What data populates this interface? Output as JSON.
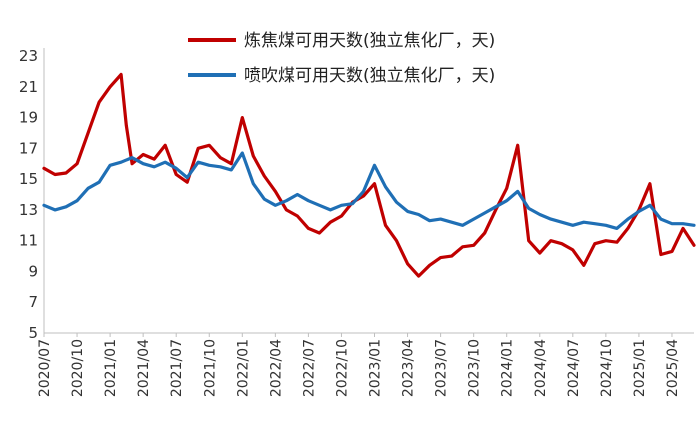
{
  "chart_data": {
    "type": "line",
    "title": "",
    "xlabel": "",
    "ylabel": "",
    "ylim": [
      5,
      23
    ],
    "yticks": [
      5,
      7,
      9,
      11,
      13,
      15,
      17,
      19,
      21,
      23
    ],
    "xticks": [
      "2020/07",
      "2020/10",
      "2021/01",
      "2021/04",
      "2021/07",
      "2021/10",
      "2022/01",
      "2022/04",
      "2022/07",
      "2022/10",
      "2023/01",
      "2023/04",
      "2023/07",
      "2023/10",
      "2024/01",
      "2024/04",
      "2024/07",
      "2024/10",
      "2025/01",
      "2025/04"
    ],
    "x_unit": "month",
    "legend_position": "top-center",
    "grid": false,
    "series": [
      {
        "name": "炼焦煤可用天数(独立焦化厂，天)",
        "color": "#c00000",
        "points": [
          [
            "2020-07",
            15.7
          ],
          [
            "2020-08",
            15.3
          ],
          [
            "2020-09",
            15.4
          ],
          [
            "2020-10",
            16.0
          ],
          [
            "2020-11",
            18.0
          ],
          [
            "2020-12",
            20.0
          ],
          [
            "2021-01",
            21.0
          ],
          [
            "2021-02",
            21.8
          ],
          [
            "2021-02-15",
            18.5
          ],
          [
            "2021-03",
            16.0
          ],
          [
            "2021-04",
            16.6
          ],
          [
            "2021-05",
            16.3
          ],
          [
            "2021-06",
            17.2
          ],
          [
            "2021-07",
            15.3
          ],
          [
            "2021-08",
            14.8
          ],
          [
            "2021-09",
            17.0
          ],
          [
            "2021-10",
            17.2
          ],
          [
            "2021-11",
            16.4
          ],
          [
            "2021-12",
            16.0
          ],
          [
            "2022-01",
            19.0
          ],
          [
            "2022-02",
            16.5
          ],
          [
            "2022-03",
            15.2
          ],
          [
            "2022-04",
            14.2
          ],
          [
            "2022-05",
            13.0
          ],
          [
            "2022-06",
            12.6
          ],
          [
            "2022-07",
            11.8
          ],
          [
            "2022-08",
            11.5
          ],
          [
            "2022-09",
            12.2
          ],
          [
            "2022-10",
            12.6
          ],
          [
            "2022-11",
            13.5
          ],
          [
            "2022-12",
            13.9
          ],
          [
            "2023-01",
            14.7
          ],
          [
            "2023-02",
            12.0
          ],
          [
            "2023-03",
            11.0
          ],
          [
            "2023-04",
            9.5
          ],
          [
            "2023-05",
            8.7
          ],
          [
            "2023-06",
            9.4
          ],
          [
            "2023-07",
            9.9
          ],
          [
            "2023-08",
            10.0
          ],
          [
            "2023-09",
            10.6
          ],
          [
            "2023-10",
            10.7
          ],
          [
            "2023-11",
            11.5
          ],
          [
            "2023-12",
            13.0
          ],
          [
            "2024-01",
            14.4
          ],
          [
            "2024-02",
            17.2
          ],
          [
            "2024-03",
            11.0
          ],
          [
            "2024-04",
            10.2
          ],
          [
            "2024-05",
            11.0
          ],
          [
            "2024-06",
            10.8
          ],
          [
            "2024-07",
            10.4
          ],
          [
            "2024-08",
            9.4
          ],
          [
            "2024-09",
            10.8
          ],
          [
            "2024-10",
            11.0
          ],
          [
            "2024-11",
            10.9
          ],
          [
            "2024-12",
            11.8
          ],
          [
            "2025-01",
            13.0
          ],
          [
            "2025-02",
            14.7
          ],
          [
            "2025-03",
            10.1
          ],
          [
            "2025-04",
            10.3
          ],
          [
            "2025-05",
            11.8
          ],
          [
            "2025-06",
            10.7
          ]
        ]
      },
      {
        "name": "喷吹煤可用天数(独立焦化厂，天)",
        "color": "#1f6fb5",
        "points": [
          [
            "2020-07",
            13.3
          ],
          [
            "2020-08",
            13.0
          ],
          [
            "2020-09",
            13.2
          ],
          [
            "2020-10",
            13.6
          ],
          [
            "2020-11",
            14.4
          ],
          [
            "2020-12",
            14.8
          ],
          [
            "2021-01",
            15.9
          ],
          [
            "2021-02",
            16.1
          ],
          [
            "2021-03",
            16.4
          ],
          [
            "2021-04",
            16.0
          ],
          [
            "2021-05",
            15.8
          ],
          [
            "2021-06",
            16.1
          ],
          [
            "2021-07",
            15.7
          ],
          [
            "2021-08",
            15.1
          ],
          [
            "2021-09",
            16.1
          ],
          [
            "2021-10",
            15.9
          ],
          [
            "2021-11",
            15.8
          ],
          [
            "2021-12",
            15.6
          ],
          [
            "2022-01",
            16.7
          ],
          [
            "2022-02",
            14.7
          ],
          [
            "2022-03",
            13.7
          ],
          [
            "2022-04",
            13.3
          ],
          [
            "2022-05",
            13.6
          ],
          [
            "2022-06",
            14.0
          ],
          [
            "2022-07",
            13.6
          ],
          [
            "2022-08",
            13.3
          ],
          [
            "2022-09",
            13.0
          ],
          [
            "2022-10",
            13.3
          ],
          [
            "2022-11",
            13.4
          ],
          [
            "2022-12",
            14.2
          ],
          [
            "2023-01",
            15.9
          ],
          [
            "2023-02",
            14.5
          ],
          [
            "2023-03",
            13.5
          ],
          [
            "2023-04",
            12.9
          ],
          [
            "2023-05",
            12.7
          ],
          [
            "2023-06",
            12.3
          ],
          [
            "2023-07",
            12.4
          ],
          [
            "2023-08",
            12.2
          ],
          [
            "2023-09",
            12.0
          ],
          [
            "2023-10",
            12.4
          ],
          [
            "2023-11",
            12.8
          ],
          [
            "2023-12",
            13.2
          ],
          [
            "2024-01",
            13.6
          ],
          [
            "2024-02",
            14.2
          ],
          [
            "2024-03",
            13.1
          ],
          [
            "2024-04",
            12.7
          ],
          [
            "2024-05",
            12.4
          ],
          [
            "2024-06",
            12.2
          ],
          [
            "2024-07",
            12.0
          ],
          [
            "2024-08",
            12.2
          ],
          [
            "2024-09",
            12.1
          ],
          [
            "2024-10",
            12.0
          ],
          [
            "2024-11",
            11.8
          ],
          [
            "2024-12",
            12.4
          ],
          [
            "2025-01",
            12.9
          ],
          [
            "2025-02",
            13.3
          ],
          [
            "2025-03",
            12.4
          ],
          [
            "2025-04",
            12.1
          ],
          [
            "2025-05",
            12.1
          ],
          [
            "2025-06",
            12.0
          ]
        ]
      }
    ]
  }
}
